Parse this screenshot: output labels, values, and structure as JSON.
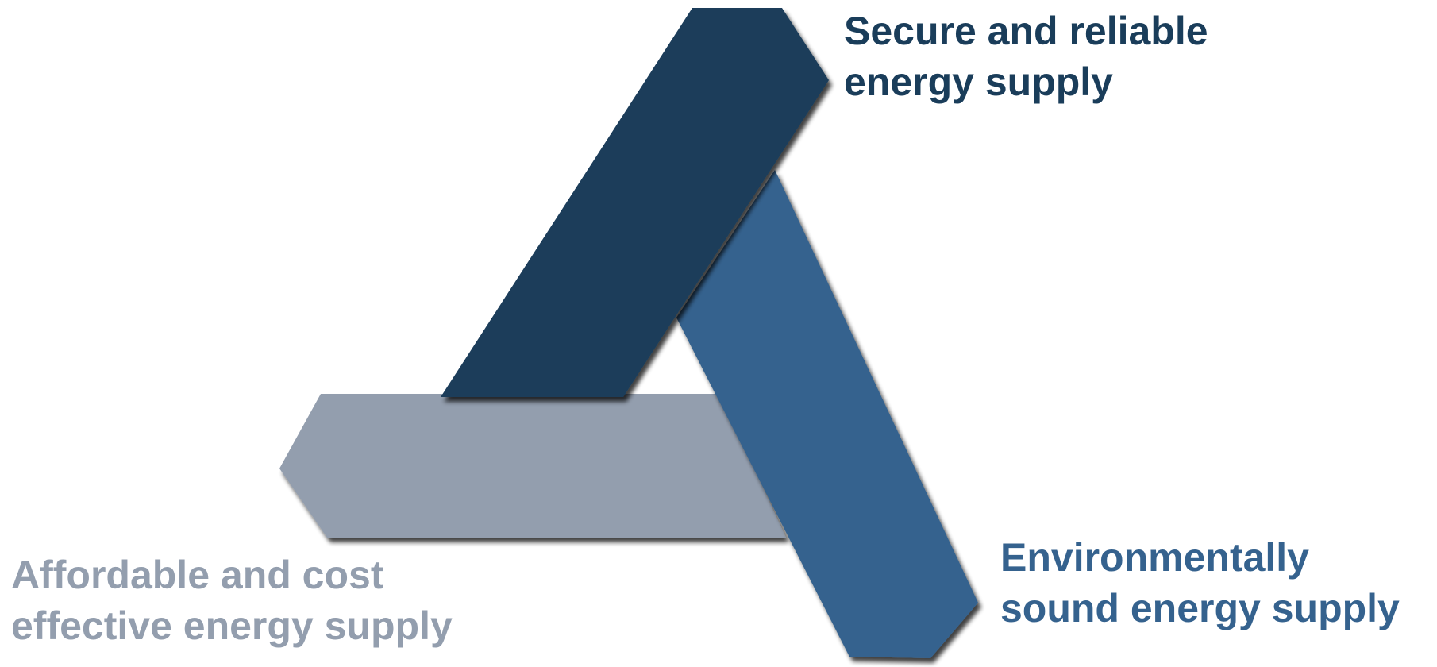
{
  "pillars": {
    "security": {
      "lines": [
        "Secure and reliable",
        "energy supply"
      ],
      "color": "#1a3d5a"
    },
    "environment": {
      "lines": [
        "Environmentally",
        "sound energy supply"
      ],
      "color": "#35628e"
    },
    "affordability": {
      "lines": [
        "Affordable and cost",
        "effective energy supply"
      ],
      "color": "#939eae"
    }
  }
}
